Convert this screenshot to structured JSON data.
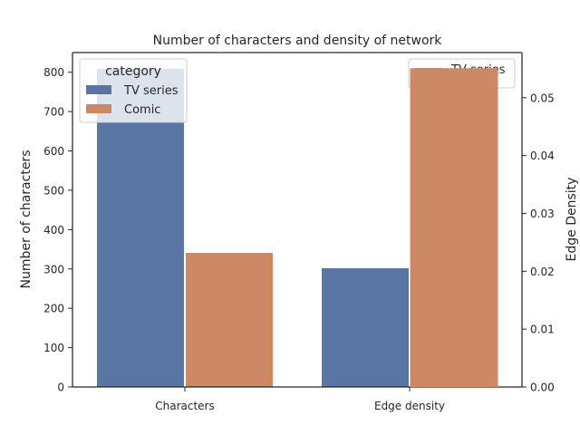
{
  "chart_data": {
    "type": "bar",
    "title": "Number of characters and density of network",
    "categories": [
      "Characters",
      "Edge density"
    ],
    "left_axis": {
      "label": "Number of characters",
      "ylim": [
        0,
        850
      ],
      "ticks": [
        "0",
        "100",
        "200",
        "300",
        "400",
        "500",
        "600",
        "700",
        "800"
      ]
    },
    "right_axis": {
      "label": "Edge Density",
      "ylim": [
        0,
        0.0578
      ],
      "ticks": [
        "0.00",
        "0.01",
        "0.02",
        "0.03",
        "0.04",
        "0.05"
      ]
    },
    "series": [
      {
        "name": "TV series",
        "color": "#5875a4",
        "values": [
          {
            "category": "Characters",
            "value": 810,
            "axis": "left"
          },
          {
            "category": "Edge density",
            "value": 0.0206,
            "axis": "right"
          }
        ]
      },
      {
        "name": "Comic",
        "color": "#cc8963",
        "values": [
          {
            "category": "Characters",
            "value": 342,
            "axis": "left"
          },
          {
            "category": "Edge density",
            "value": 0.0551,
            "axis": "right"
          }
        ]
      }
    ],
    "legend_left": {
      "title": "category",
      "entries": [
        "TV series",
        "Comic"
      ],
      "placement": "top-left"
    },
    "legend_right": {
      "entries": [
        "TV series"
      ],
      "placement": "top-right"
    },
    "grid": false
  }
}
